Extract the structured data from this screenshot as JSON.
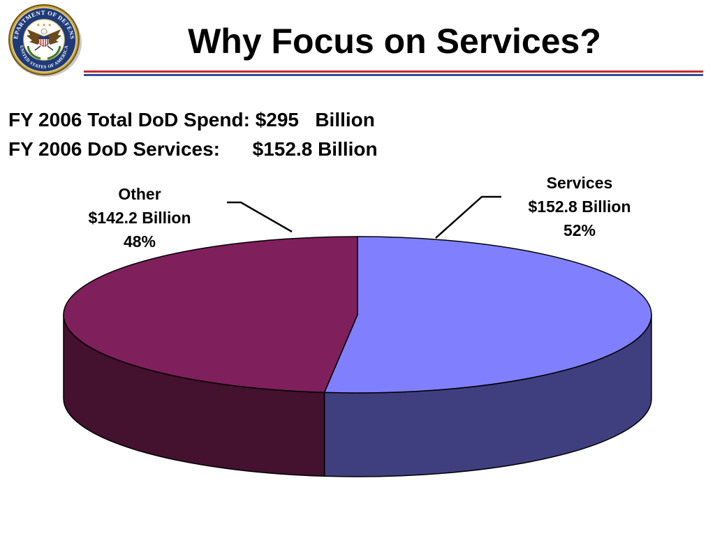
{
  "slide": {
    "title": "Why Focus on Services?",
    "line1": "FY 2006 Total DoD Spend: $295   Billion",
    "line2": "FY 2006 DoD Services:      $152.8 Billion"
  },
  "seal": {
    "top_text": "DEPARTMENT OF DEFENSE",
    "bottom_text": "UNITED STATES OF AMERICA"
  },
  "colors": {
    "services_top": "#8080ff",
    "services_side": "#3f3f7f",
    "other_top": "#7f1f5b",
    "other_side": "#44112f",
    "rule_red": "#c8282d",
    "rule_blue": "#3a4a9a"
  },
  "chart_data": {
    "type": "pie",
    "title": "",
    "units": "Billion",
    "slices": [
      {
        "name": "Services",
        "value": 152.8,
        "percent": 52,
        "value_label": "$152.8 Billion",
        "percent_label": "52%"
      },
      {
        "name": "Other",
        "value": 142.2,
        "percent": 48,
        "value_label": "$142.2 Billion",
        "percent_label": "48%"
      }
    ]
  }
}
